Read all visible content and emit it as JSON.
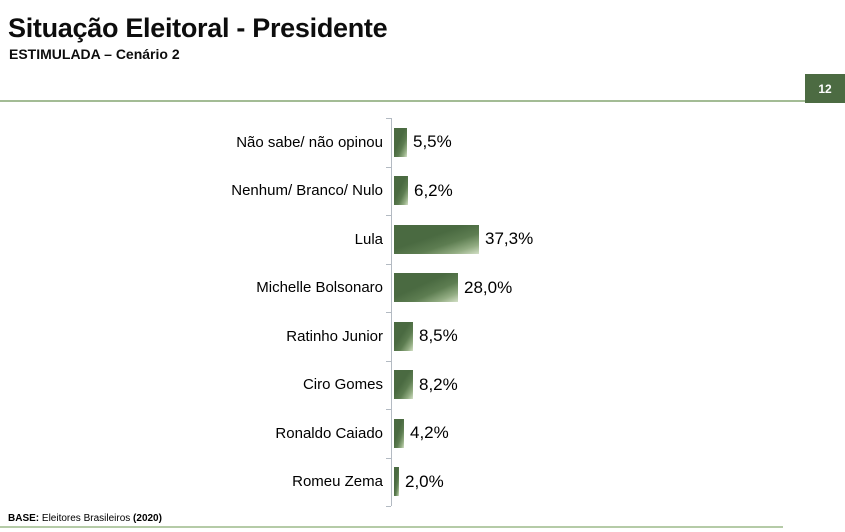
{
  "header": {
    "title": "Situação Eleitoral - Presidente",
    "subtitle": "ESTIMULADA – Cenário 2",
    "page_number": "12"
  },
  "footer": {
    "base_label": "BASE:",
    "base_text": " Eleitores Brasileiros ",
    "base_year": "(2020)"
  },
  "colors": {
    "accent_dark_green": "#4c6b42",
    "header_rule_green": "#a3bc95",
    "footer_rule_green": "#b5cba7",
    "bar_gradient_dark": "#4a6a41",
    "bar_gradient_light": "#d3e0c6",
    "axis_gray": "#b3bac2",
    "text_black": "#000000",
    "badge_text_white": "#ffffff"
  },
  "chart_data": {
    "type": "bar",
    "orientation": "horizontal",
    "title": "Situação Eleitoral - Presidente",
    "subtitle": "ESTIMULADA – Cenário 2",
    "unit": "%",
    "grid": false,
    "legend": false,
    "xlim": [
      0,
      40
    ],
    "categories": [
      "Não sabe/ não opinou",
      "Nenhum/ Branco/ Nulo",
      "Lula",
      "Michelle Bolsonaro",
      "Ratinho Junior",
      "Ciro Gomes",
      "Ronaldo Caiado",
      "Romeu Zema"
    ],
    "values": [
      5.5,
      6.2,
      37.3,
      28.0,
      8.5,
      8.2,
      4.2,
      2.0
    ],
    "value_labels": [
      "5,5%",
      "6,2%",
      "37,3%",
      "28,0%",
      "8,5%",
      "8,2%",
      "4,2%",
      "2,0%"
    ]
  }
}
